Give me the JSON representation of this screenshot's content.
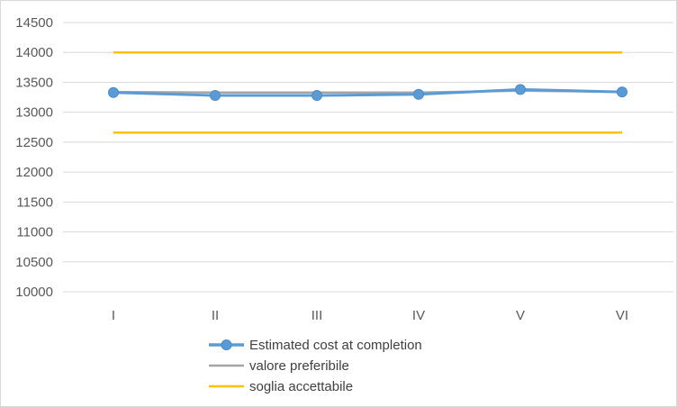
{
  "chart_data": {
    "type": "line",
    "title": "",
    "xlabel": "",
    "ylabel": "",
    "categories": [
      "I",
      "II",
      "III",
      "IV",
      "V",
      "VI"
    ],
    "ylim": [
      10000,
      14500
    ],
    "y_ticks": [
      10000,
      10500,
      11000,
      11500,
      12000,
      12500,
      13000,
      13500,
      14000,
      14500
    ],
    "grid": true,
    "legend_position": "bottom",
    "series": [
      {
        "name": "Estimated cost at completion",
        "values": [
          13330,
          13280,
          13280,
          13300,
          13380,
          13340
        ],
        "color": "#5b9bd5",
        "marker": "circle"
      },
      {
        "name": "valore preferibile",
        "values": [
          13340,
          13330,
          13330,
          13330,
          13360,
          13340
        ],
        "color": "#a5a5a5",
        "marker": "none"
      },
      {
        "name": "soglia accettabile",
        "values": [
          14000,
          14000,
          14000,
          14000,
          14000,
          14000
        ],
        "color": "#ffc000",
        "marker": "none"
      },
      {
        "name": "",
        "values": [
          12660,
          12660,
          12660,
          12660,
          12660,
          12660
        ],
        "color": "#ffc000",
        "marker": "none",
        "in_legend": false
      }
    ]
  }
}
